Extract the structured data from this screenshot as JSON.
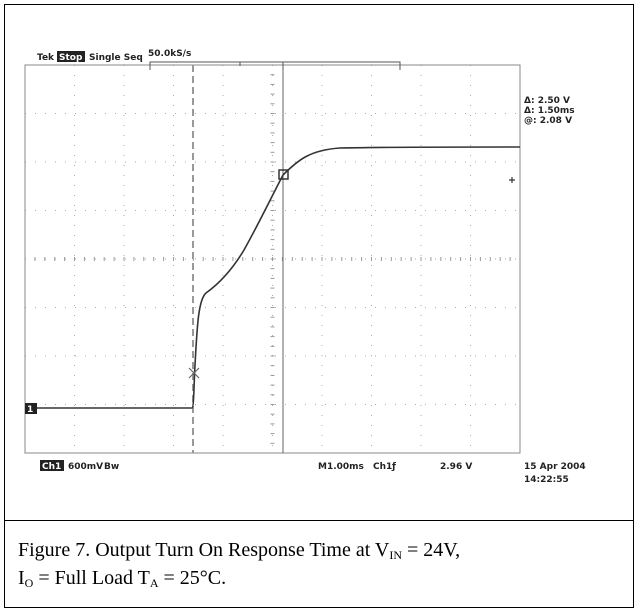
{
  "screen": {
    "brand": "Tek",
    "state": "Stop",
    "mode": "Single Seq",
    "sample_rate": "50.0kS/s",
    "readouts": [
      "Δ: 2.50 V",
      "Δ: 1.50ms",
      "@: 2.08 V"
    ],
    "ground_marker": "1",
    "channel": "Ch1",
    "scale": "600mV",
    "bandwidth": "Bw",
    "timebase": "M1.00ms",
    "trigger_source": "Ch1",
    "trigger_slope": "ƒ",
    "trigger_level": "2.96 V",
    "date": "15 Apr 2004",
    "time": "14:22:55"
  },
  "caption": {
    "parts": [
      "Figure 7. Output Turn On Response Time at V",
      "IN",
      " = 24V,",
      "I",
      "O",
      " = Full Load T",
      "A",
      " = 25°C."
    ]
  }
}
